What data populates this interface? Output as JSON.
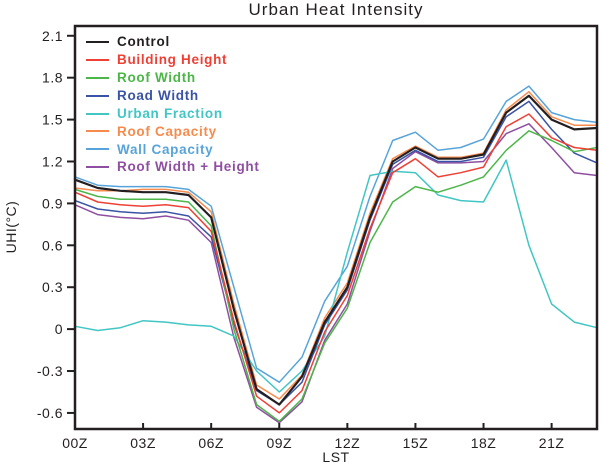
{
  "chart_data": {
    "type": "line",
    "title": "Urban Heat Intensity",
    "xlabel": "LST",
    "ylabel": "UHI(°C)",
    "axis_color": "#231f20",
    "grid": false,
    "legend_position": "top-left-inside",
    "xlim": [
      0,
      23
    ],
    "ylim": [
      -0.715,
      2.17
    ],
    "x_ticks": [
      {
        "hour": 0,
        "label": "00Z"
      },
      {
        "hour": 3,
        "label": "03Z"
      },
      {
        "hour": 6,
        "label": "06Z"
      },
      {
        "hour": 9,
        "label": "09Z"
      },
      {
        "hour": 12,
        "label": "12Z"
      },
      {
        "hour": 15,
        "label": "15Z"
      },
      {
        "hour": 18,
        "label": "18Z"
      },
      {
        "hour": 21,
        "label": "21Z"
      }
    ],
    "y_ticks": [
      {
        "value": 2.1,
        "label": "2.1"
      },
      {
        "value": 1.8,
        "label": "1.8"
      },
      {
        "value": 1.5,
        "label": "1.5"
      },
      {
        "value": 1.2,
        "label": "1.2"
      },
      {
        "value": 0.9,
        "label": "0.9"
      },
      {
        "value": 0.6,
        "label": "0.6"
      },
      {
        "value": 0.3,
        "label": "0.3"
      },
      {
        "value": 0,
        "label": "0"
      },
      {
        "value": -0.3,
        "label": "-0.3"
      },
      {
        "value": -0.6,
        "label": "-0.6"
      }
    ],
    "x_hours": [
      0,
      1,
      2,
      3,
      4,
      5,
      6,
      7,
      8,
      9,
      10,
      11,
      12,
      13,
      14,
      15,
      16,
      17,
      18,
      19,
      20,
      21,
      22,
      23
    ],
    "series": [
      {
        "name": "Control",
        "color": "#231f20",
        "line_width": 2.2,
        "values": [
          1.07,
          1.01,
          0.99,
          0.98,
          0.98,
          0.96,
          0.8,
          0.14,
          -0.43,
          -0.54,
          -0.34,
          0.05,
          0.3,
          0.8,
          1.2,
          1.3,
          1.22,
          1.22,
          1.25,
          1.55,
          1.67,
          1.5,
          1.43,
          1.44
        ]
      },
      {
        "name": "Building Height",
        "color": "#ee4035",
        "line_width": 1.5,
        "values": [
          0.98,
          0.91,
          0.89,
          0.88,
          0.89,
          0.87,
          0.7,
          0.06,
          -0.48,
          -0.6,
          -0.44,
          -0.02,
          0.24,
          0.72,
          1.12,
          1.22,
          1.09,
          1.12,
          1.16,
          1.45,
          1.54,
          1.37,
          1.3,
          1.28
        ]
      },
      {
        "name": "Roof Width",
        "color": "#4cb648",
        "line_width": 1.5,
        "values": [
          1.0,
          0.95,
          0.93,
          0.93,
          0.93,
          0.91,
          0.74,
          0.0,
          -0.54,
          -0.66,
          -0.5,
          -0.1,
          0.15,
          0.62,
          0.91,
          1.02,
          0.98,
          1.03,
          1.09,
          1.28,
          1.42,
          1.35,
          1.27,
          1.3
        ]
      },
      {
        "name": "Road Width",
        "color": "#3a53a5",
        "line_width": 1.5,
        "values": [
          0.92,
          0.86,
          0.84,
          0.83,
          0.84,
          0.81,
          0.66,
          0.04,
          -0.44,
          -0.54,
          -0.38,
          0.03,
          0.28,
          0.78,
          1.18,
          1.28,
          1.2,
          1.2,
          1.23,
          1.52,
          1.63,
          1.43,
          1.26,
          1.19
        ]
      },
      {
        "name": "Urban Fraction",
        "color": "#41c6c4",
        "line_width": 1.5,
        "values": [
          0.02,
          -0.01,
          0.01,
          0.06,
          0.05,
          0.03,
          0.02,
          -0.05,
          -0.3,
          -0.45,
          -0.3,
          -0.05,
          0.55,
          1.1,
          1.13,
          1.12,
          0.96,
          0.92,
          0.91,
          1.21,
          0.6,
          0.18,
          0.05,
          0.01
        ]
      },
      {
        "name": "Roof Capacity",
        "color": "#f68b4d",
        "line_width": 1.5,
        "values": [
          1.01,
          0.99,
          0.99,
          1.0,
          1.0,
          0.98,
          0.84,
          0.18,
          -0.4,
          -0.5,
          -0.33,
          0.08,
          0.33,
          0.83,
          1.22,
          1.31,
          1.23,
          1.23,
          1.26,
          1.57,
          1.7,
          1.52,
          1.46,
          1.46
        ]
      },
      {
        "name": "Wall Capacity",
        "color": "#58a4da",
        "line_width": 1.5,
        "values": [
          1.09,
          1.03,
          1.02,
          1.02,
          1.02,
          1.0,
          0.88,
          0.3,
          -0.28,
          -0.38,
          -0.2,
          0.2,
          0.45,
          0.95,
          1.35,
          1.41,
          1.28,
          1.3,
          1.36,
          1.63,
          1.74,
          1.55,
          1.5,
          1.48
        ]
      },
      {
        "name": "Roof Width + Height",
        "color": "#8f4fa1",
        "line_width": 1.5,
        "values": [
          0.89,
          0.82,
          0.8,
          0.79,
          0.81,
          0.78,
          0.62,
          -0.06,
          -0.56,
          -0.67,
          -0.52,
          -0.08,
          0.18,
          0.7,
          1.15,
          1.27,
          1.19,
          1.19,
          1.2,
          1.4,
          1.47,
          1.3,
          1.12,
          1.1
        ]
      }
    ]
  }
}
